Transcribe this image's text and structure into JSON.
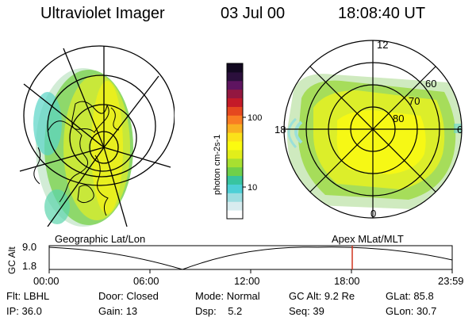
{
  "header": {
    "title": "Ultraviolet Imager",
    "date": "03 Jul 00",
    "time": "18:08:40 UT"
  },
  "left_panel": {
    "caption": "Geographic Lat/Lon"
  },
  "right_panel": {
    "caption": "Apex MLat/MLT",
    "mlt_labels": {
      "top": "12",
      "left": "18",
      "right": "6",
      "bottom": "0"
    },
    "lat_labels": [
      "60",
      "70",
      "80"
    ]
  },
  "colorbar": {
    "unit_label": "photon cm-2s-1",
    "tick_labels": [
      "100",
      "10"
    ],
    "colors": [
      "#ffffff",
      "#d8ecef",
      "#9ddde0",
      "#4dcfd6",
      "#38c4a0",
      "#6fd04a",
      "#a8e030",
      "#e2ee1a",
      "#fbfb10",
      "#fbe11a",
      "#f9b021",
      "#f97d23",
      "#e5481f",
      "#c41a28",
      "#931740",
      "#5e1460",
      "#2b0f3c",
      "#120820"
    ]
  },
  "altitude_plot": {
    "ylabel": "GC Alt",
    "ytick_labels": [
      "9.0",
      "1.8"
    ],
    "xtick_labels": [
      "00:00",
      "06:00",
      "12:00",
      "18:00",
      "23:59"
    ]
  },
  "status": {
    "row1": [
      {
        "label": "Flt:",
        "value": "LBHL"
      },
      {
        "label": "Door:",
        "value": "Closed"
      },
      {
        "label": "Mode:",
        "value": "Normal"
      },
      {
        "label": "GC Alt:",
        "value": "9.2 Re"
      },
      {
        "label": "GLat:",
        "value": "85.8"
      }
    ],
    "row2": [
      {
        "label": "IP:",
        "value": "36.0"
      },
      {
        "label": "Gain:",
        "value": "13"
      },
      {
        "label": "Dsp:",
        "value": "5.2"
      },
      {
        "label": "Seq:",
        "value": "39"
      },
      {
        "label": "GLon:",
        "value": "30.7"
      }
    ]
  }
}
